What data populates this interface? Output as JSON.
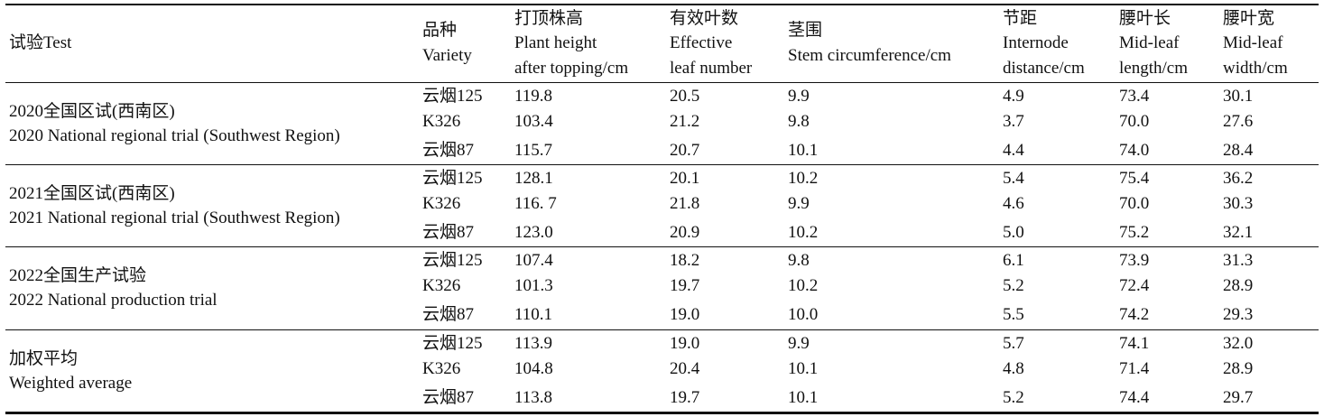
{
  "table": {
    "header": [
      [
        "试验Test"
      ],
      [
        "品种",
        "Variety"
      ],
      [
        "打顶株高",
        "Plant height",
        "after topping/cm"
      ],
      [
        "有效叶数",
        "Effective",
        "leaf number"
      ],
      [
        "茎围",
        "Stem circumference/cm"
      ],
      [
        "节距",
        "Internode",
        "distance/cm"
      ],
      [
        "腰叶长",
        "Mid-leaf",
        "length/cm"
      ],
      [
        "腰叶宽",
        "Mid-leaf",
        "width/cm"
      ]
    ],
    "groups": [
      {
        "test": [
          "2020全国区试(西南区)",
          "2020 National regional trial (Southwest Region)"
        ],
        "rows": [
          [
            "云烟125",
            "119.8",
            "20.5",
            "9.9",
            "4.9",
            "73.4",
            "30.1"
          ],
          [
            "K326",
            "103.4",
            "21.2",
            "9.8",
            "3.7",
            "70.0",
            "27.6"
          ],
          [
            "云烟87",
            "115.7",
            "20.7",
            "10.1",
            "4.4",
            "74.0",
            "28.4"
          ]
        ]
      },
      {
        "test": [
          "2021全国区试(西南区)",
          "2021 National regional trial (Southwest Region)"
        ],
        "rows": [
          [
            "云烟125",
            "128.1",
            "20.1",
            "10.2",
            "5.4",
            "75.4",
            "36.2"
          ],
          [
            "K326",
            "116. 7",
            "21.8",
            "9.9",
            "4.6",
            "70.0",
            "30.3"
          ],
          [
            "云烟87",
            "123.0",
            "20.9",
            "10.2",
            "5.0",
            "75.2",
            "32.1"
          ]
        ]
      },
      {
        "test": [
          "2022全国生产试验",
          "2022 National production trial"
        ],
        "rows": [
          [
            "云烟125",
            "107.4",
            "18.2",
            "9.8",
            "6.1",
            "73.9",
            "31.3"
          ],
          [
            "K326",
            "101.3",
            "19.7",
            "10.2",
            "5.2",
            "72.4",
            "28.9"
          ],
          [
            "云烟87",
            "110.1",
            "19.0",
            "10.0",
            "5.5",
            "74.2",
            "29.3"
          ]
        ]
      },
      {
        "test": [
          "加权平均",
          "Weighted average"
        ],
        "rows": [
          [
            "云烟125",
            "113.9",
            "19.0",
            "9.9",
            "5.7",
            "74.1",
            "32.0"
          ],
          [
            "K326",
            "104.8",
            "20.4",
            "10.1",
            "4.8",
            "71.4",
            "28.9"
          ],
          [
            "云烟87",
            "113.8",
            "19.7",
            "10.1",
            "5.2",
            "74.4",
            "29.7"
          ]
        ]
      }
    ]
  }
}
